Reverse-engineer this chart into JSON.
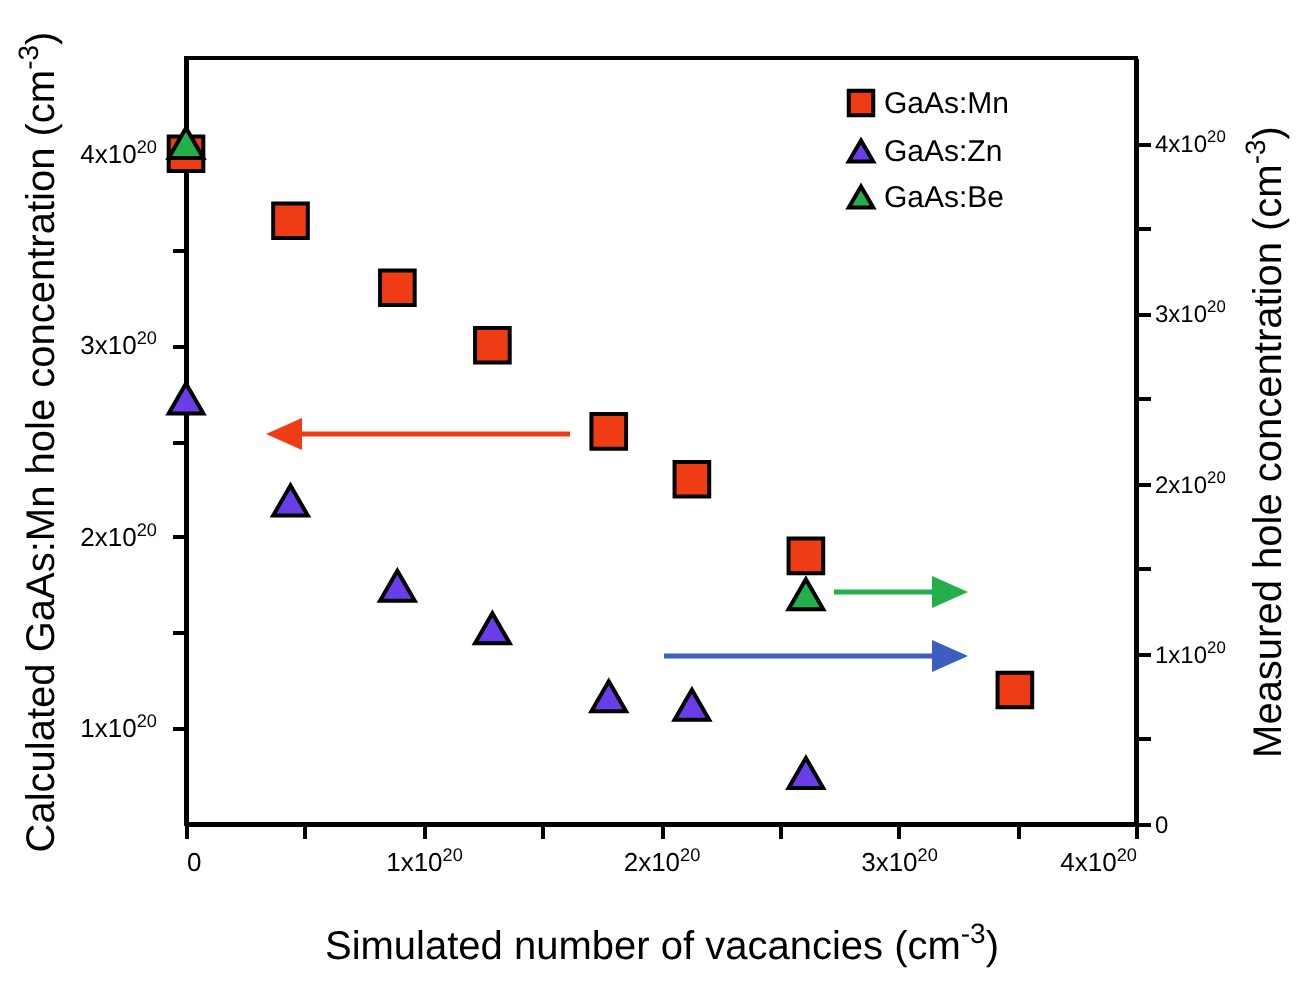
{
  "chart_data": {
    "type": "scatter",
    "xlabel": "Simulated number of vacancies (cm$^{-3}$)",
    "ylabel": "Calculated GaAs:Mn hole concentration (cm$^{-3}$)",
    "y2label": "Measured hole concentration (cm$^{-3}$)",
    "series": [
      {
        "name": "GaAs:Mn",
        "color": "#f03c14",
        "marker": "square",
        "x": [
          0,
          4.4e+19,
          8.9e+19,
          1.29e+20,
          1.78e+20,
          2.13e+20,
          2.61e+20,
          3.49e+20
        ],
        "values": [
          4e+20,
          3.65e+20,
          3.3e+20,
          3e+20,
          2.55e+20,
          2.3e+20,
          1.9e+20,
          1.2e+20
        ]
      },
      {
        "name": "GaAs:Zn",
        "color": "#6a3de8",
        "marker": "triangle",
        "axis": "y2",
        "x": [
          0,
          4.4e+19,
          8.9e+19,
          1.29e+20,
          1.78e+20,
          2.13e+20,
          2.61e+20
        ],
        "values": [
          2.5e+20,
          1.9e+20,
          1.4e+20,
          1.15e+20,
          7.5e+19,
          7e+19,
          3e+19
        ]
      },
      {
        "name": "GaAs:Be",
        "color": "#22b04b",
        "marker": "triangle",
        "axis": "y2",
        "x": [
          0,
          2.61e+20
        ],
        "values": [
          4e+20,
          1.35e+20
        ]
      }
    ],
    "xlim": [
      0,
      4e+20
    ],
    "xticks": [
      {
        "value": 0,
        "label": "0"
      },
      {
        "value": 5e+19,
        "label": null
      },
      {
        "value": 1e+20,
        "label": "1x10$^{20}$"
      },
      {
        "value": 1.5e+20,
        "label": null
      },
      {
        "value": 2e+20,
        "label": "2x10$^{20}$"
      },
      {
        "value": 2.5e+20,
        "label": null
      },
      {
        "value": 3e+20,
        "label": "3x10$^{20}$"
      },
      {
        "value": 3.5e+20,
        "label": null
      },
      {
        "value": 4e+20,
        "label": "4x10$^{20}$"
      }
    ],
    "ylim": [
      5e+19,
      4.5e+20
    ],
    "yticks": [
      {
        "value": 1e+20,
        "label": "1x10$^{20}$"
      },
      {
        "value": 1.5e+20,
        "label": null
      },
      {
        "value": 2e+20,
        "label": "2x10$^{20}$"
      },
      {
        "value": 2.5e+20,
        "label": null
      },
      {
        "value": 3e+20,
        "label": "3x10$^{20}$"
      },
      {
        "value": 3.5e+20,
        "label": null
      },
      {
        "value": 4e+20,
        "label": "4x10$^{20}$"
      }
    ],
    "y2lim": [
      0,
      4.5e+20
    ],
    "y2ticks": [
      {
        "value": 0,
        "label": "0"
      },
      {
        "value": 5e+19,
        "label": null
      },
      {
        "value": 1e+20,
        "label": "1x10$^{20}$"
      },
      {
        "value": 1.5e+20,
        "label": null
      },
      {
        "value": 2e+20,
        "label": "2x10$^{20}$"
      },
      {
        "value": 2.5e+20,
        "label": null
      },
      {
        "value": 3e+20,
        "label": "3x10$^{20}$"
      },
      {
        "value": 3.5e+20,
        "label": null
      },
      {
        "value": 4e+20,
        "label": "4x10$^{20}$"
      }
    ],
    "grid": false,
    "legend": "top right"
  }
}
